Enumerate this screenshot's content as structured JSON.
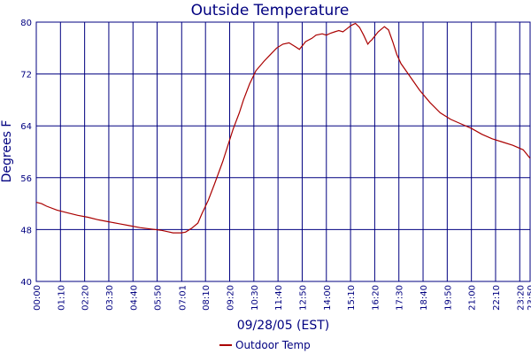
{
  "chart_data": {
    "type": "line",
    "title": "Outside Temperature",
    "xlabel": "09/28/05 (EST)",
    "ylabel": "Degrees F",
    "ylim": [
      40,
      80
    ],
    "yticks": [
      "40",
      "48",
      "56",
      "64",
      "72",
      "80"
    ],
    "xticks": [
      "00:00",
      "01:10",
      "02:20",
      "03:30",
      "04:40",
      "05:50",
      "07:01",
      "08:10",
      "09:20",
      "10:30",
      "11:40",
      "12:50",
      "14:00",
      "15:10",
      "16:20",
      "17:30",
      "18:40",
      "19:50",
      "21:00",
      "22:10",
      "23:20",
      "23:50"
    ],
    "grid": true,
    "legend": "bottom-center",
    "colors": {
      "series": "#aa0000",
      "grid": "#000080",
      "text": "#000080"
    },
    "series": [
      {
        "name": "Outdoor Temp",
        "x_hours": [
          0,
          0.25,
          0.5,
          1,
          1.5,
          2,
          2.5,
          3,
          3.5,
          4,
          4.5,
          5,
          5.5,
          6,
          6.3,
          6.6,
          7,
          7.2,
          7.5,
          7.8,
          8,
          8.3,
          8.6,
          9,
          9.2,
          9.5,
          9.8,
          10,
          10.3,
          10.6,
          11,
          11.3,
          11.6,
          11.9,
          12.2,
          12.5,
          12.7,
          13,
          13.3,
          13.5,
          13.8,
          14,
          14.2,
          14.4,
          14.6,
          14.8,
          15,
          15.2,
          15.4,
          15.6,
          15.8,
          16,
          16.1,
          16.2,
          16.5,
          16.8,
          17,
          17.2,
          17.4,
          17.6,
          18,
          18.5,
          19,
          19.5,
          20,
          20.5,
          21,
          21.5,
          22,
          22.5,
          23,
          23.5,
          23.83
        ],
        "values": [
          52.2,
          52,
          51.6,
          51,
          50.6,
          50.2,
          49.9,
          49.5,
          49.2,
          48.9,
          48.6,
          48.3,
          48.1,
          47.9,
          47.7,
          47.5,
          47.5,
          47.6,
          48.2,
          49,
          50.5,
          52.5,
          55,
          58.5,
          60.5,
          63.5,
          66,
          68,
          70.5,
          72.5,
          74,
          75,
          76,
          76.6,
          76.8,
          76.2,
          75.8,
          77,
          77.5,
          78,
          78.2,
          78,
          78.3,
          78.5,
          78.7,
          78.5,
          79,
          79.5,
          79.8,
          79.2,
          78,
          76.6,
          77,
          77.3,
          78.5,
          79.3,
          78.8,
          77,
          75,
          73.6,
          71.8,
          69.5,
          67.6,
          66,
          65,
          64.3,
          63.6,
          62.7,
          62,
          61.5,
          61,
          60.3,
          59
        ]
      }
    ]
  }
}
